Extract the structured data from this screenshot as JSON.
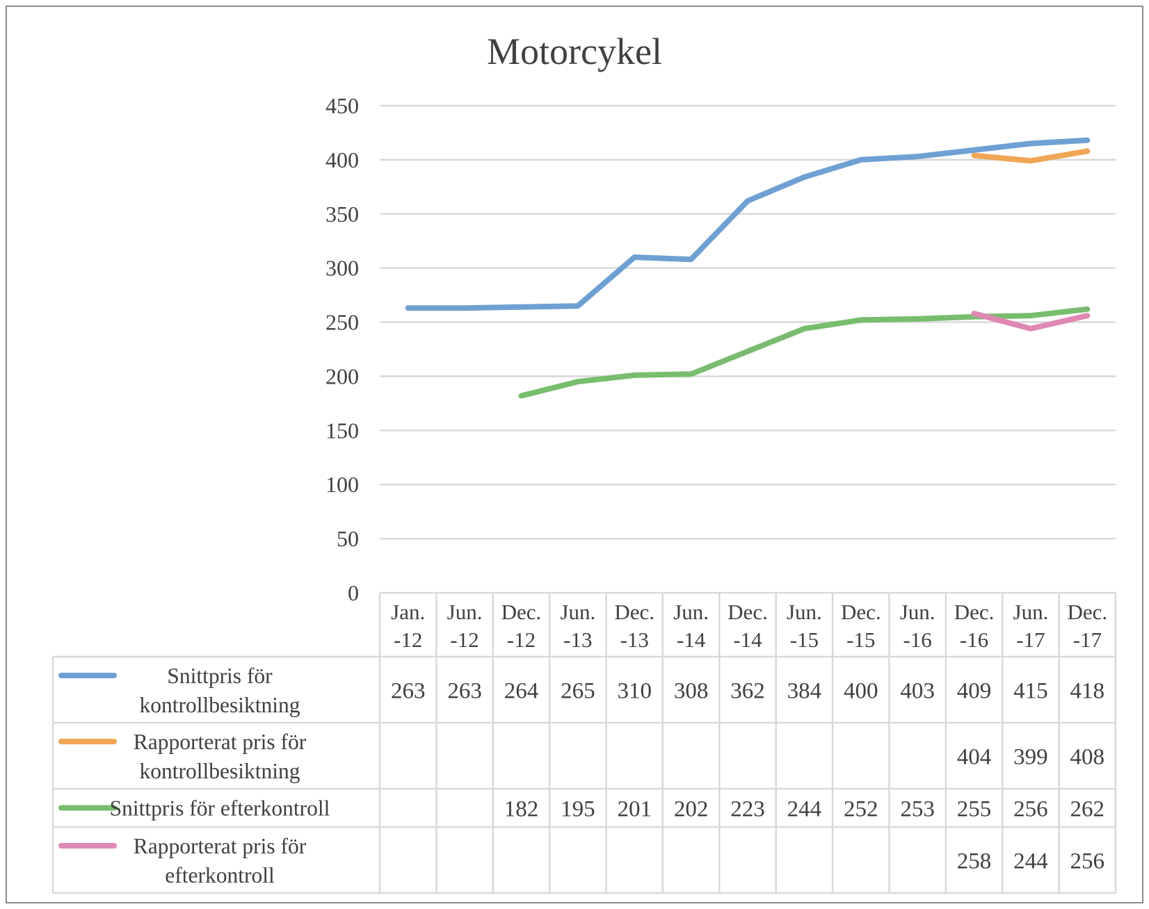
{
  "chart_data": {
    "type": "line",
    "title": "Motorcykel",
    "categories": [
      [
        "Jan.",
        "-12"
      ],
      [
        "Jun.",
        "-12"
      ],
      [
        "Dec.",
        "-12"
      ],
      [
        "Jun.",
        "-13"
      ],
      [
        "Dec.",
        "-13"
      ],
      [
        "Jun.",
        "-14"
      ],
      [
        "Dec.",
        "-14"
      ],
      [
        "Jun.",
        "-15"
      ],
      [
        "Dec.",
        "-15"
      ],
      [
        "Jun.",
        "-16"
      ],
      [
        "Dec.",
        "-16"
      ],
      [
        "Jun.",
        "-17"
      ],
      [
        "Dec.",
        "-17"
      ]
    ],
    "ylim": [
      0,
      450
    ],
    "yticks": [
      "0",
      "50",
      "100",
      "150",
      "200",
      "250",
      "300",
      "350",
      "400",
      "450"
    ],
    "grid": true,
    "legend_placement": "data-table",
    "series": [
      {
        "name_lines": [
          "Snittpris för",
          "kontrollbesiktning"
        ],
        "color": "#6fa0d3",
        "values": [
          263,
          263,
          264,
          265,
          310,
          308,
          362,
          384,
          400,
          403,
          409,
          415,
          418
        ]
      },
      {
        "name_lines": [
          "Rapporterat pris för",
          "kontrollbesiktning"
        ],
        "color": "#f0a656",
        "values": [
          null,
          null,
          null,
          null,
          null,
          null,
          null,
          null,
          null,
          null,
          404,
          399,
          408
        ]
      },
      {
        "name_lines": [
          "Snittpris för efterkontroll"
        ],
        "color": "#78bd6e",
        "values": [
          null,
          null,
          182,
          195,
          201,
          202,
          223,
          244,
          252,
          253,
          255,
          256,
          262
        ]
      },
      {
        "name_lines": [
          "Rapporterat pris för",
          "efterkontroll"
        ],
        "color": "#df88b3",
        "values": [
          null,
          null,
          null,
          null,
          null,
          null,
          null,
          null,
          null,
          null,
          258,
          244,
          256
        ]
      }
    ]
  }
}
